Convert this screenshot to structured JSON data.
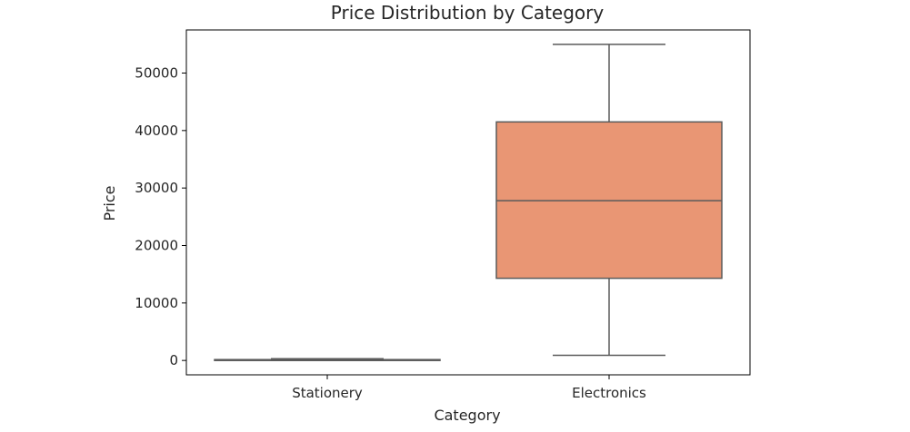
{
  "chart_data": {
    "type": "box",
    "title": "Price Distribution by Category",
    "xlabel": "Category",
    "ylabel": "Price",
    "ylim": [
      -2500,
      57500
    ],
    "yticks": [
      0,
      10000,
      20000,
      30000,
      40000,
      50000
    ],
    "ytick_labels": [
      "0",
      "10000",
      "20000",
      "30000",
      "40000",
      "50000"
    ],
    "categories": [
      "Stationery",
      "Electronics"
    ],
    "colors": {
      "Stationery": "#6aa6d8",
      "Electronics": "#e99674",
      "edge": "#5a5a5a"
    },
    "boxes": [
      {
        "category": "Stationery",
        "min": 0,
        "q1": 20,
        "median": 60,
        "q3": 150,
        "max": 300
      },
      {
        "category": "Electronics",
        "min": 900,
        "q1": 14300,
        "median": 27800,
        "q3": 41500,
        "max": 55000
      }
    ],
    "grid": false
  }
}
